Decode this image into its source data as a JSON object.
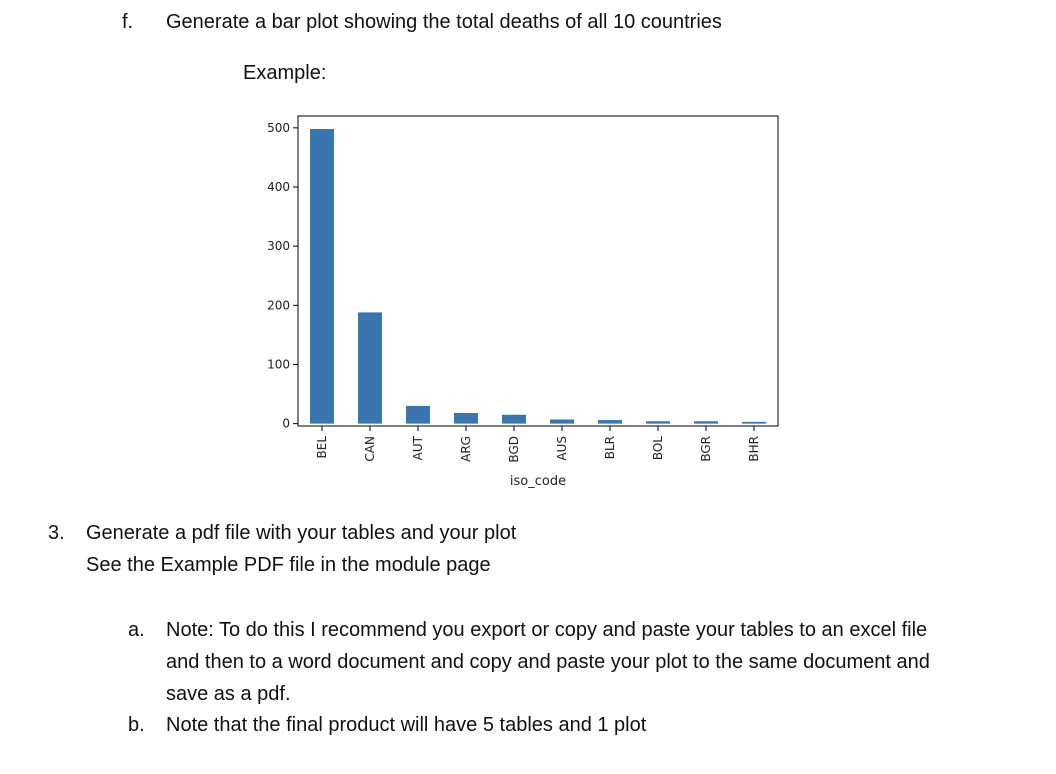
{
  "item_f": {
    "marker": "f.",
    "text": "Generate a bar plot showing the total deaths of all 10 countries",
    "example_label": "Example:"
  },
  "chart_data": {
    "type": "bar",
    "categories": [
      "BEL",
      "CAN",
      "AUT",
      "ARG",
      "BGD",
      "AUS",
      "BLR",
      "BOL",
      "BGR",
      "BHR"
    ],
    "values": [
      498,
      188,
      30,
      18,
      15,
      7,
      6,
      4,
      4,
      3
    ],
    "xlabel": "iso_code",
    "ylabel": "",
    "yticks": [
      0,
      100,
      200,
      300,
      400,
      500
    ],
    "ylim": [
      -4,
      520
    ],
    "bar_color": "#3a75b0",
    "grid": false,
    "legend": "none"
  },
  "item_3": {
    "marker": "3.",
    "line1": "Generate a pdf file with your tables and your plot",
    "line2": "See the Example PDF file in the module page"
  },
  "item_a": {
    "marker": "a.",
    "line1": "Note: To do this I recommend you export or copy and paste your tables to an excel file",
    "line2": "and then to a word document and copy and paste your plot to the same document and",
    "line3": "save as a pdf."
  },
  "item_b": {
    "marker": "b.",
    "line1": "Note that the final product will have 5 tables and 1 plot"
  }
}
